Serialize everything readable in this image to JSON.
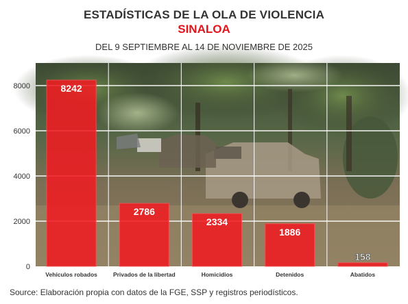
{
  "header": {
    "title": "ESTADÍSTICAS DE LA OLA DE VIOLENCIA",
    "subtitle": "SINALOA",
    "date_range": "DEL 9 SEPTIEMBRE AL 14 DE NOVIEMBRE DE 2025"
  },
  "footer": {
    "source": "Source: Elaboración propia con datos de la FGE, SSP y registros periodísticos."
  },
  "colors": {
    "bar": "#f01c22",
    "bar_edge": "#ff4a4f",
    "title": "#333333",
    "subtitle": "#e4141b",
    "grid": "#ffffff"
  },
  "chart_data": {
    "type": "bar",
    "categories": [
      "Vehículos robados",
      "Privados de la libertad",
      "Homicidios",
      "Detenidos",
      "Abatidos"
    ],
    "values": [
      8242,
      2786,
      2334,
      1886,
      158
    ],
    "data_labels": [
      "8242",
      "2786",
      "2334",
      "1886",
      "158"
    ],
    "yticks": [
      0,
      2000,
      4000,
      6000,
      8000
    ],
    "ylim": [
      0,
      9000
    ],
    "grid": true,
    "legend": "none",
    "background": "photo-of-stolen-vehicles-in-woods"
  }
}
